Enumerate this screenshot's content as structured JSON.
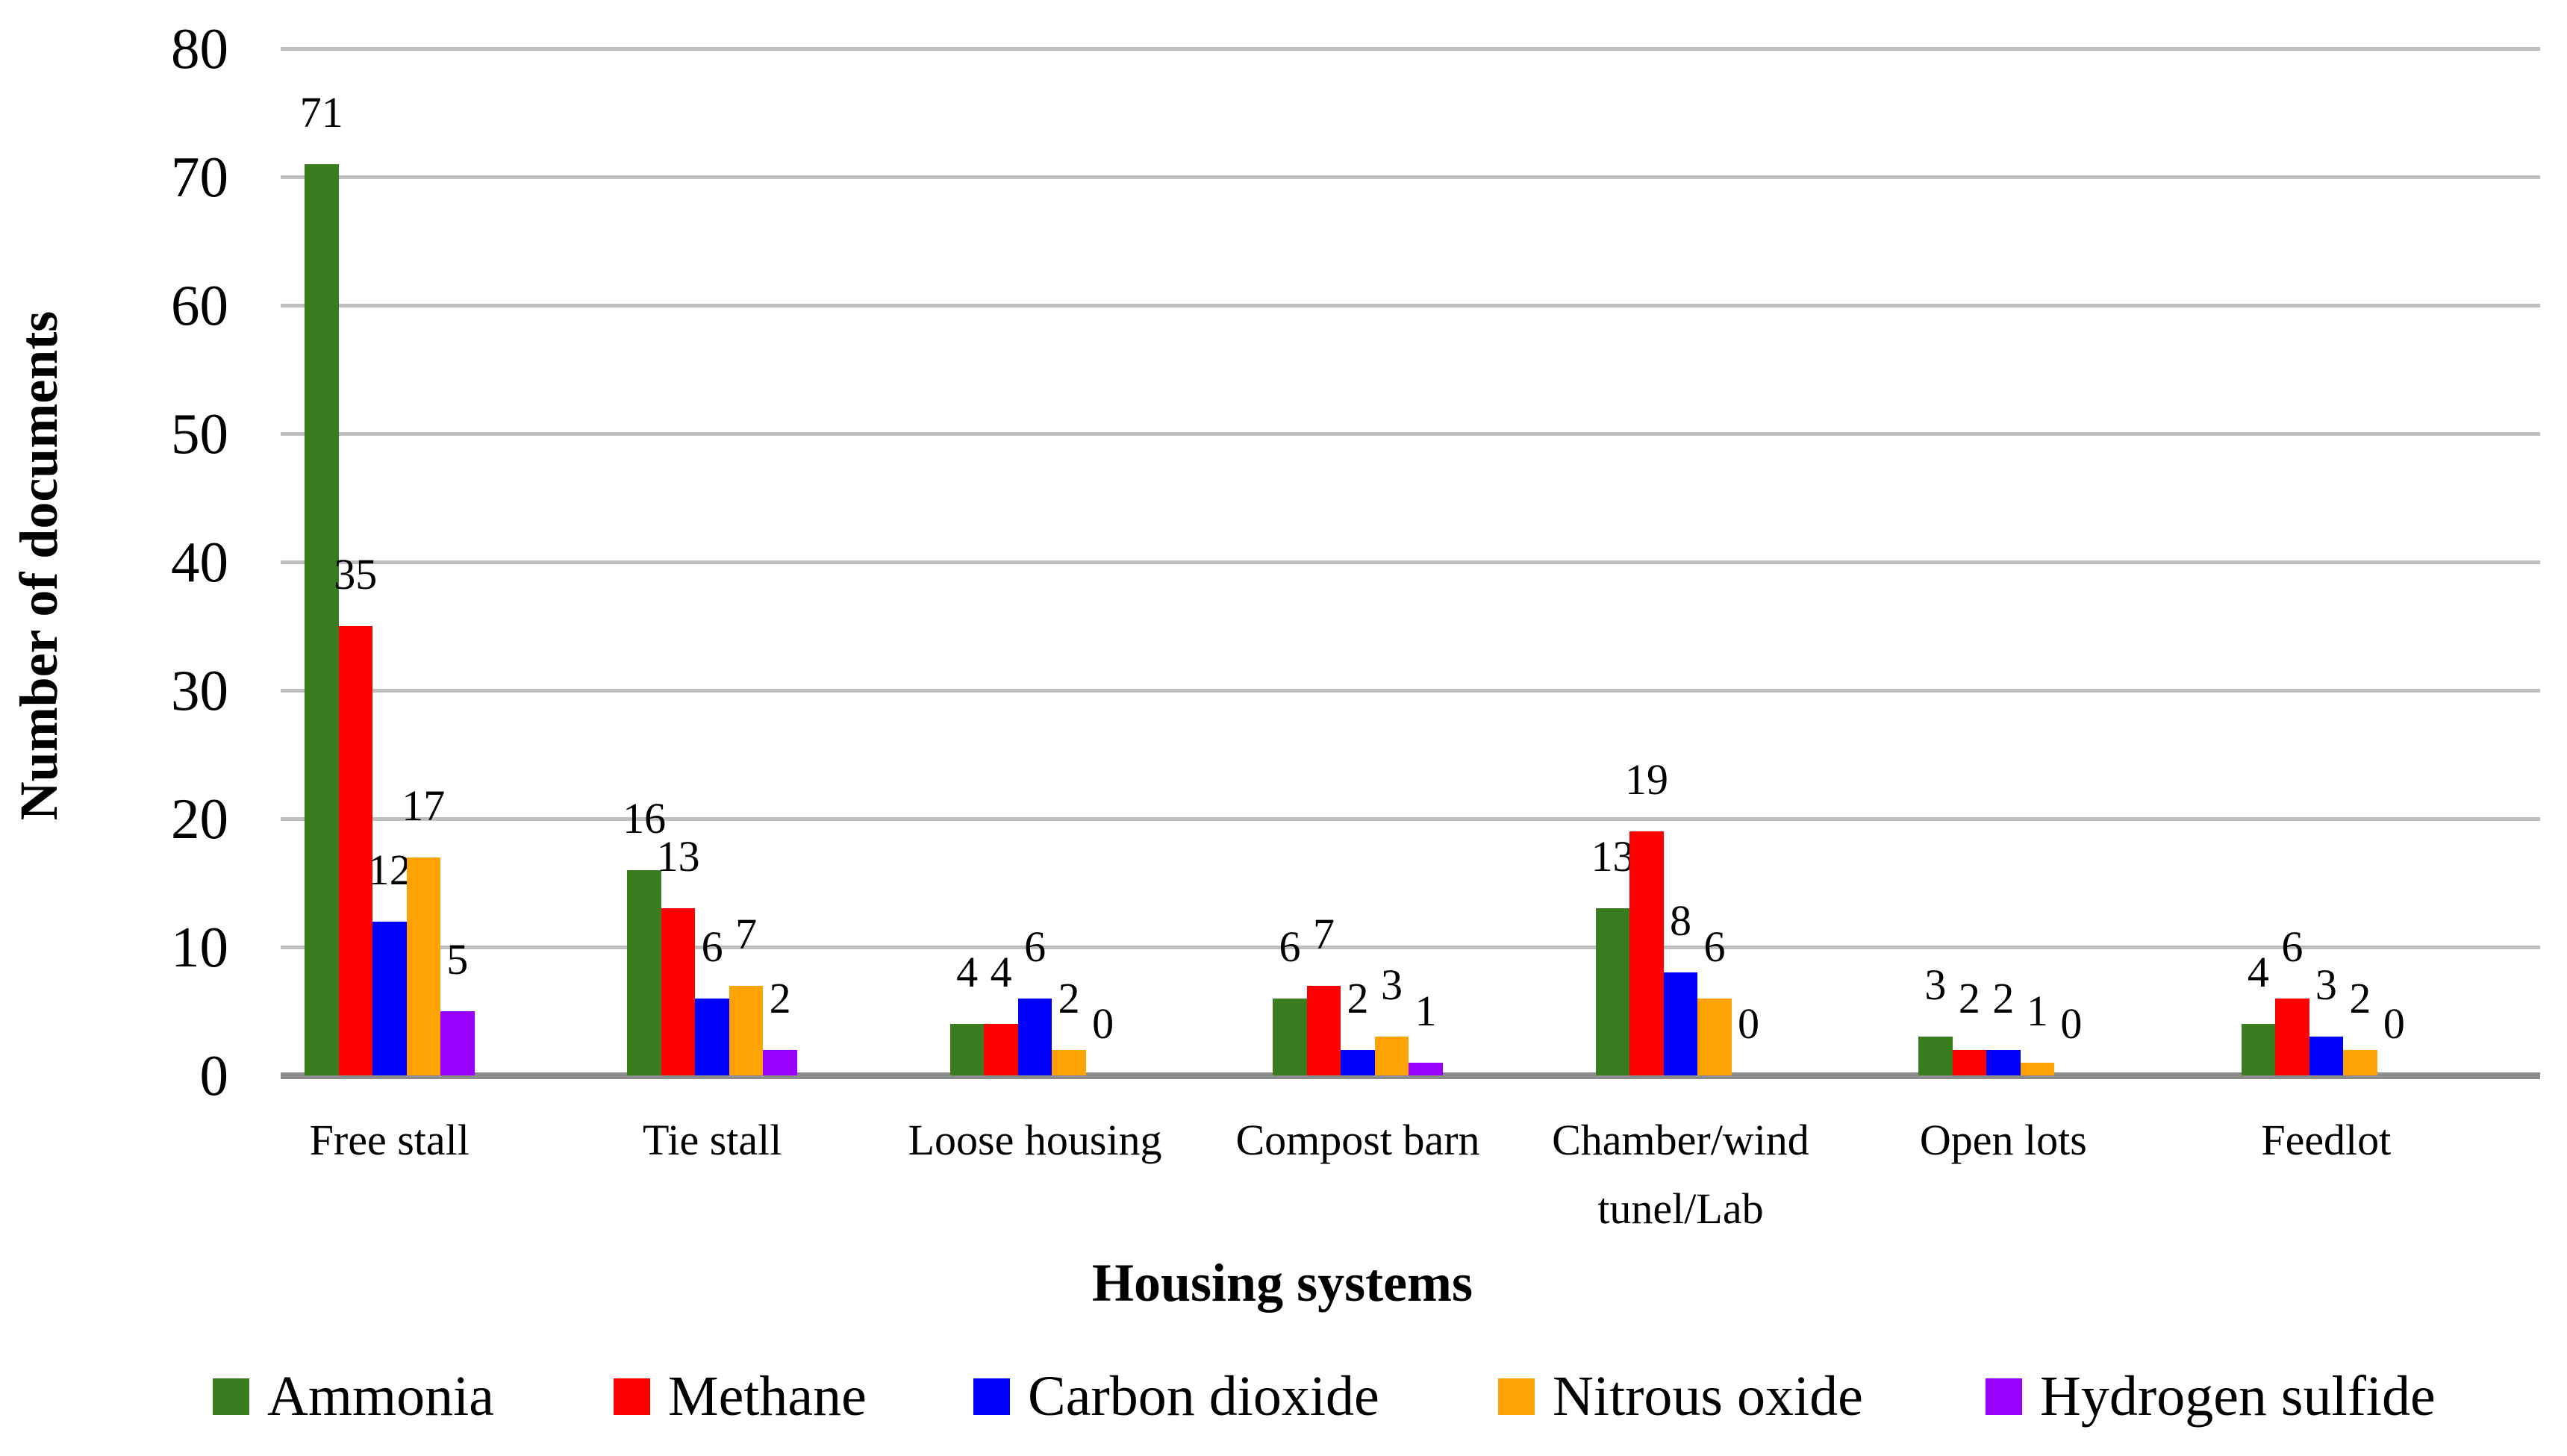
{
  "chart_data": {
    "type": "bar",
    "title": "",
    "xlabel": "Housing systems",
    "ylabel": "Number of documents",
    "ylim": [
      0,
      80
    ],
    "ytick_step": 10,
    "ytick_labels": [
      "0",
      "10",
      "20",
      "30",
      "40",
      "50",
      "60",
      "70",
      "80"
    ],
    "grid": true,
    "grid_color": "#BFBFBF",
    "axis_line_color": "#8C8C8C",
    "text_color": "#000000",
    "legend_position": "bottom",
    "data_labels": true,
    "categories": [
      "Free stall",
      "Tie stall",
      "Loose housing",
      "Compost barn",
      "Chamber/wind tunel/Lab",
      "Open lots",
      "Feedlot"
    ],
    "categories_lines": [
      [
        "Free stall"
      ],
      [
        "Tie stall"
      ],
      [
        "Loose housing"
      ],
      [
        "Compost barn"
      ],
      [
        "Chamber/wind",
        "tunel/Lab"
      ],
      [
        "Open lots"
      ],
      [
        "Feedlot"
      ]
    ],
    "series": [
      {
        "name": "Ammonia",
        "color": "#3A7D21",
        "values": [
          71,
          16,
          4,
          6,
          13,
          3,
          4
        ]
      },
      {
        "name": "Methane",
        "color": "#FF0000",
        "values": [
          35,
          13,
          4,
          7,
          19,
          2,
          6
        ]
      },
      {
        "name": "Carbon dioxide",
        "color": "#0000FF",
        "values": [
          12,
          6,
          6,
          2,
          8,
          2,
          3
        ]
      },
      {
        "name": "Nitrous oxide",
        "color": "#FFA203",
        "values": [
          17,
          7,
          2,
          3,
          6,
          1,
          2
        ]
      },
      {
        "name": "Hydrogen sulfide",
        "color": "#9900FF",
        "values": [
          5,
          2,
          0,
          1,
          0,
          0,
          0
        ]
      }
    ]
  }
}
